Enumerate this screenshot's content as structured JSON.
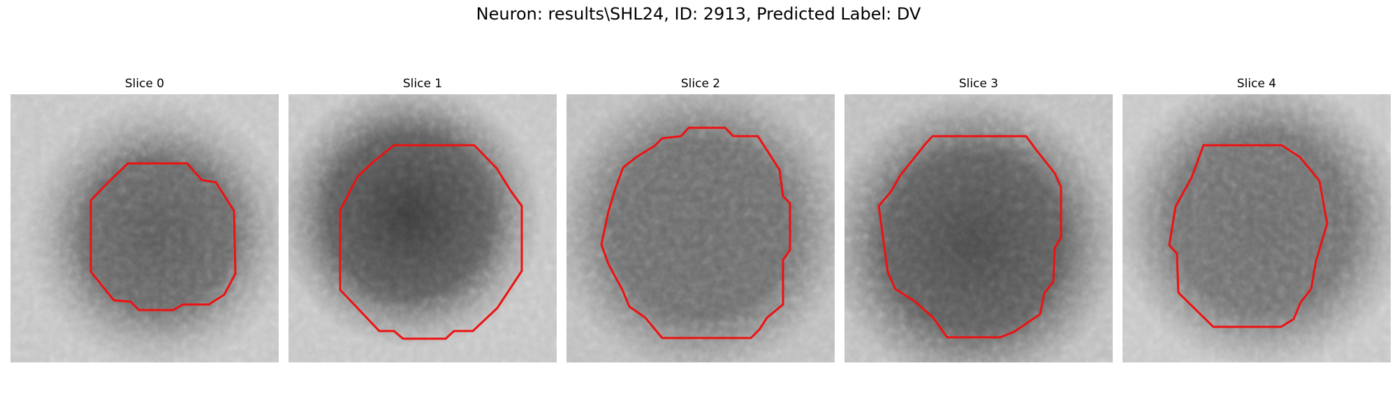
{
  "figure": {
    "title": "Neuron: results\\SHL24, ID: 2913, Predicted Label: DV"
  },
  "panels": [
    {
      "title": "Slice 0"
    },
    {
      "title": "Slice 1"
    },
    {
      "title": "Slice 2"
    },
    {
      "title": "Slice 3"
    },
    {
      "title": "Slice 4"
    }
  ],
  "colors": {
    "contour": "#ee1111",
    "background": "#ffffff"
  }
}
